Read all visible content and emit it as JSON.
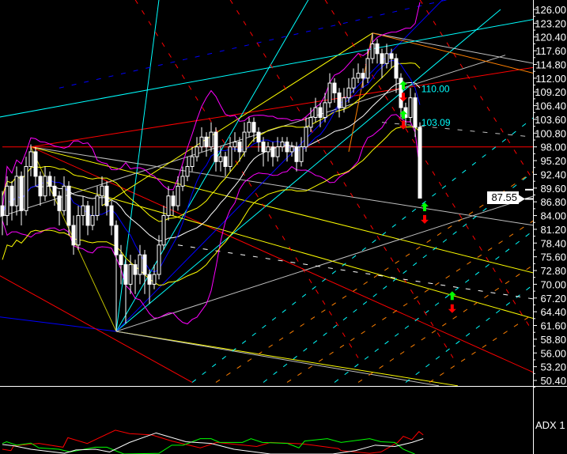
{
  "chart_data": {
    "type": "candlestick",
    "price_axis": {
      "ticks": [
        "126.00",
        "123.20",
        "120.40",
        "117.60",
        "114.80",
        "112.00",
        "109.20",
        "106.40",
        "103.60",
        "100.80",
        "98.00",
        "95.20",
        "92.40",
        "89.60",
        "86.80",
        "84.00",
        "81.20",
        "78.40",
        "75.60",
        "72.80",
        "70.00",
        "67.20",
        "64.40",
        "61.60",
        "58.80",
        "56.00",
        "53.20",
        "50.40"
      ],
      "ylim": [
        50.4,
        126.0
      ]
    },
    "last_price": "87.55",
    "candles": [
      [
        86,
        89,
        80,
        84
      ],
      [
        84,
        92,
        82,
        90
      ],
      [
        90,
        91,
        83,
        86
      ],
      [
        86,
        94,
        84,
        92
      ],
      [
        92,
        93,
        82,
        85
      ],
      [
        85,
        96,
        84,
        94
      ],
      [
        94,
        98.5,
        92,
        97
      ],
      [
        97,
        98,
        90,
        92
      ],
      [
        92,
        93,
        86,
        88
      ],
      [
        88,
        94,
        87,
        92
      ],
      [
        92,
        93,
        88,
        90
      ],
      [
        90,
        92,
        86,
        88
      ],
      [
        88,
        89,
        82,
        85
      ],
      [
        85,
        92,
        84,
        90
      ],
      [
        90,
        91,
        80,
        82
      ],
      [
        82,
        84,
        76,
        78
      ],
      [
        78,
        86,
        77,
        84
      ],
      [
        84,
        88,
        82,
        86
      ],
      [
        86,
        87,
        80,
        82
      ],
      [
        82,
        86,
        81,
        84
      ],
      [
        84,
        90,
        83,
        88
      ],
      [
        88,
        92,
        86,
        90
      ],
      [
        90,
        91,
        84,
        86
      ],
      [
        86,
        87,
        80,
        82
      ],
      [
        82,
        83,
        60.4,
        76
      ],
      [
        76,
        78,
        70,
        74
      ],
      [
        74,
        75,
        62,
        70
      ],
      [
        70,
        76,
        68,
        74
      ],
      [
        74,
        75,
        68,
        72
      ],
      [
        72,
        78,
        70,
        76
      ],
      [
        76,
        77,
        68,
        72
      ],
      [
        72,
        73,
        66,
        70
      ],
      [
        70,
        74,
        69,
        72
      ],
      [
        72,
        80,
        71,
        78
      ],
      [
        78,
        86,
        77,
        84
      ],
      [
        84,
        90,
        83,
        88
      ],
      [
        88,
        89,
        84,
        86
      ],
      [
        86,
        92,
        85,
        90
      ],
      [
        90,
        94,
        89,
        92
      ],
      [
        92,
        96,
        91,
        94
      ],
      [
        94,
        98,
        93,
        96
      ],
      [
        96,
        100,
        95,
        98
      ],
      [
        98,
        102,
        97,
        100
      ],
      [
        100,
        101,
        96,
        98
      ],
      [
        98,
        103,
        97,
        101
      ],
      [
        101,
        102,
        93,
        95
      ],
      [
        95,
        98,
        93,
        96
      ],
      [
        96,
        97,
        92,
        94
      ],
      [
        94,
        100,
        93,
        98
      ],
      [
        98,
        101,
        97,
        99
      ],
      [
        99,
        100,
        95,
        97
      ],
      [
        97,
        103,
        96,
        101
      ],
      [
        101,
        104,
        100,
        103
      ],
      [
        103,
        104,
        99,
        101
      ],
      [
        101,
        102,
        97,
        99
      ],
      [
        99,
        100,
        94,
        97
      ],
      [
        97,
        99,
        95,
        98
      ],
      [
        98,
        99,
        94,
        96
      ],
      [
        96,
        100,
        95,
        98
      ],
      [
        98,
        100,
        97,
        99
      ],
      [
        99,
        100,
        95,
        97
      ],
      [
        97,
        99,
        96,
        98
      ],
      [
        98,
        99,
        93,
        95
      ],
      [
        95,
        100,
        94,
        98
      ],
      [
        98,
        104,
        97,
        102
      ],
      [
        102,
        106,
        101,
        104
      ],
      [
        104,
        108,
        103,
        106
      ],
      [
        106,
        107,
        102,
        104
      ],
      [
        104,
        109,
        103,
        107
      ],
      [
        107,
        113,
        106,
        111
      ],
      [
        111,
        112,
        107,
        109
      ],
      [
        109,
        110,
        104,
        106
      ],
      [
        106,
        110,
        105,
        108
      ],
      [
        108,
        112,
        107,
        110
      ],
      [
        110,
        114,
        109,
        112
      ],
      [
        112,
        115,
        111,
        113
      ],
      [
        113,
        114,
        110,
        112
      ],
      [
        112,
        118,
        111,
        116
      ],
      [
        116,
        121.2,
        115,
        119
      ],
      [
        119,
        120,
        115,
        117
      ],
      [
        117,
        118,
        112,
        115
      ],
      [
        115,
        119,
        114,
        117
      ],
      [
        117,
        118,
        114,
        116
      ],
      [
        116,
        117,
        109,
        112
      ],
      [
        112,
        113,
        104,
        106
      ],
      [
        106,
        107,
        102,
        104
      ],
      [
        104,
        110,
        103,
        108
      ],
      [
        108,
        109,
        100,
        102
      ],
      [
        102,
        103,
        87.55,
        87.55
      ]
    ],
    "overlay_lines": [
      {
        "from": [
          0,
          98
        ],
        "to": [
          112,
          98
        ],
        "color": "#ff0000",
        "dash": false
      },
      {
        "from": [
          6,
          98
        ],
        "to": [
          112,
          114.2
        ],
        "color": "#ff0000",
        "dash": false
      },
      {
        "from": [
          6,
          98
        ],
        "to": [
          112,
          82
        ],
        "color": "#c0c0c0",
        "dash": false
      },
      {
        "from": [
          6,
          98
        ],
        "to": [
          112,
          72.3
        ],
        "color": "#ffff00",
        "dash": false
      },
      {
        "from": [
          6,
          98
        ],
        "to": [
          112,
          52
        ],
        "color": "#ff0000",
        "dash": false
      },
      {
        "from": [
          6,
          98
        ],
        "to": [
          24,
          60.4
        ],
        "color": "#c0c000",
        "dash": false
      },
      {
        "from": [
          -1,
          63.4
        ],
        "to": [
          24,
          60.4
        ],
        "color": "#0000ff",
        "dash": false
      },
      {
        "from": [
          24,
          60.4
        ],
        "to": [
          33,
          128
        ],
        "color": "#00ffff",
        "dash": false
      },
      {
        "from": [
          24,
          60.4
        ],
        "to": [
          64.5,
          128
        ],
        "color": "#00ffff",
        "dash": false
      },
      {
        "from": [
          24,
          60.4
        ],
        "to": [
          105,
          126
        ],
        "color": "#00ffff",
        "dash": false
      },
      {
        "from": [
          24,
          60.4
        ],
        "to": [
          92.8,
          128
        ],
        "color": "#0000ff",
        "dash": false
      },
      {
        "from": [
          24,
          60.4
        ],
        "to": [
          112,
          88
        ],
        "color": "#c0c0c0",
        "dash": false
      },
      {
        "from": [
          24,
          60.4
        ],
        "to": [
          96,
          49.3
        ],
        "color": "#ffff00",
        "dash": false
      },
      {
        "from": [
          24,
          60.4
        ],
        "to": [
          92,
          49.3
        ],
        "color": "#c0c0c0",
        "dash": false
      },
      {
        "from": [
          -1,
          83.6
        ],
        "to": [
          106,
          116.7
        ],
        "color": "#c0c0c0",
        "dash": false
      },
      {
        "from": [
          21,
          86
        ],
        "to": [
          78,
          121.2
        ],
        "color": "#ffff00",
        "dash": false
      },
      {
        "from": [
          78,
          121.2
        ],
        "to": [
          112,
          115
        ],
        "color": "#c0c0c0",
        "dash": false
      },
      {
        "from": [
          78,
          121.2
        ],
        "to": [
          112,
          113
        ],
        "color": "#ff8000",
        "dash": false
      },
      {
        "from": [
          78,
          121.2
        ],
        "to": [
          73,
          97
        ],
        "color": "#ff8000",
        "dash": false
      },
      {
        "from": [
          14,
          90
        ],
        "to": [
          112,
          63
        ],
        "color": "#ffff00",
        "dash": false
      },
      {
        "from": [
          -1,
          104
        ],
        "to": [
          112,
          124
        ],
        "color": "#00ffff",
        "dash": false
      },
      {
        "from": [
          12,
          110
        ],
        "to": [
          112,
          132
        ],
        "color": "#0000ff",
        "dash": true
      },
      {
        "from": [
          40,
          50
        ],
        "to": [
          112,
          104
        ],
        "color": "#00ffff",
        "dash": true
      },
      {
        "from": [
          55,
          50
        ],
        "to": [
          112,
          93
        ],
        "color": "#00ffff",
        "dash": true
      },
      {
        "from": [
          70,
          50
        ],
        "to": [
          112,
          81
        ],
        "color": "#00ffff",
        "dash": true
      },
      {
        "from": [
          85,
          50
        ],
        "to": [
          112,
          70
        ],
        "color": "#00ffff",
        "dash": true
      },
      {
        "from": [
          45,
          50
        ],
        "to": [
          112,
          93
        ],
        "color": "#ff8000",
        "dash": true
      },
      {
        "from": [
          60,
          50
        ],
        "to": [
          112,
          83
        ],
        "color": "#ff8000",
        "dash": true
      },
      {
        "from": [
          75,
          50
        ],
        "to": [
          112,
          74
        ],
        "color": "#ff8000",
        "dash": true
      },
      {
        "from": [
          90,
          50
        ],
        "to": [
          112,
          64
        ],
        "color": "#ff8000",
        "dash": true
      },
      {
        "from": [
          28,
          128
        ],
        "to": [
          75,
          55
        ],
        "color": "#ff0000",
        "dash": true
      },
      {
        "from": [
          48,
          128
        ],
        "to": [
          95,
          55
        ],
        "color": "#ff0000",
        "dash": true
      },
      {
        "from": [
          68,
          128
        ],
        "to": [
          112,
          60
        ],
        "color": "#ff0000",
        "dash": true
      },
      {
        "from": [
          88,
          128
        ],
        "to": [
          112,
          91
        ],
        "color": "#ff0000",
        "dash": true
      },
      {
        "from": [
          -1,
          72
        ],
        "to": [
          40,
          50
        ],
        "color": "#ff0000",
        "dash": false
      },
      {
        "from": [
          37,
          78
        ],
        "to": [
          112,
          67
        ],
        "color": "#ffffff",
        "dash": true
      },
      {
        "from": [
          80,
          103
        ],
        "to": [
          112,
          100
        ],
        "color": "#c0c0c0",
        "dash": true
      }
    ],
    "annotations": [
      {
        "text": "110.00",
        "at": [
          88.3,
          110
        ],
        "color": "#00ffff"
      },
      {
        "text": "103.09",
        "at": [
          88.3,
          103.09
        ],
        "color": "#00ffff"
      }
    ],
    "signals": [
      {
        "type": "up",
        "at": [
          89,
          85.7
        ],
        "color": "#00ff00"
      },
      {
        "type": "down",
        "at": [
          89,
          83.3
        ],
        "color": "#ff0000"
      },
      {
        "type": "up",
        "at": [
          94.8,
          67.6
        ],
        "color": "#00ff00"
      },
      {
        "type": "down",
        "at": [
          94.8,
          65.1
        ],
        "color": "#ff0000"
      },
      {
        "type": "up",
        "at": [
          84.5,
          110.5
        ],
        "color": "#00ff00"
      },
      {
        "type": "down",
        "at": [
          84.5,
          108.2
        ],
        "color": "#ff0000"
      },
      {
        "type": "up",
        "at": [
          84.5,
          104.5
        ],
        "color": "#00ff00"
      },
      {
        "type": "down",
        "at": [
          84.5,
          102.5
        ],
        "color": "#ff0000"
      }
    ],
    "adx_panel": {
      "label": "ADX 1",
      "series": [
        {
          "color": "#ff0000",
          "x": [
            0,
            1.8,
            2.4,
            7.7,
            12.8,
            13.8,
            17.9,
            23.8,
            26.8,
            31.5,
            35.7,
            41.7,
            45.2,
            53.6,
            56.5,
            63.1,
            65.5,
            70.8,
            71.4,
            77.4,
            79.8,
            83.3,
            84.5,
            86.3,
            87.8,
            88.7
          ],
          "values": [
            7,
            5,
            12,
            15.5,
            10,
            24,
            15.5,
            35,
            30,
            28,
            19,
            9,
            17,
            11,
            17,
            15,
            13,
            8,
            5,
            1,
            3,
            17,
            26,
            21,
            33,
            28
          ]
        },
        {
          "color": "#00ff00",
          "x": [
            0,
            0.9,
            3,
            6,
            7.7,
            11.9,
            14.3,
            19.6,
            22,
            25.6,
            33,
            35.7,
            38.1,
            41.7,
            44,
            45.8,
            50.6,
            52.4,
            54.8,
            60.1,
            62.5,
            63.7,
            68.5,
            71.4,
            77.4,
            79.8,
            82.7,
            84.5,
            86.9
          ],
          "values": [
            15.5,
            18,
            13,
            16,
            9,
            7,
            3,
            10,
            10,
            0,
            1,
            13,
            13,
            22.5,
            22.5,
            17,
            17,
            22.5,
            17,
            15.5,
            9,
            19,
            22.5,
            17,
            22.5,
            18,
            17,
            7,
            0
          ]
        },
        {
          "color": "#ffffff",
          "x": [
            0,
            2.4,
            6,
            13.1,
            15.5,
            19.6,
            22.6,
            26.8,
            32.4,
            38.7,
            44,
            48.8,
            56.5,
            69.6,
            74.4,
            78.6,
            82.7,
            86.3,
            88.7
          ],
          "values": [
            14,
            12,
            7,
            1,
            6,
            7,
            3,
            17,
            31,
            18,
            15.5,
            7,
            0,
            0,
            5,
            13,
            11,
            17,
            22.5
          ]
        }
      ]
    },
    "colors": {
      "background": "#000000",
      "axis": "#ffffff",
      "candle": "#ffffff",
      "upper_band": "#ff00ff",
      "ma_fast": "#0000ff",
      "ma_slow": "#ffffff",
      "envelope": "#ffff00"
    }
  }
}
